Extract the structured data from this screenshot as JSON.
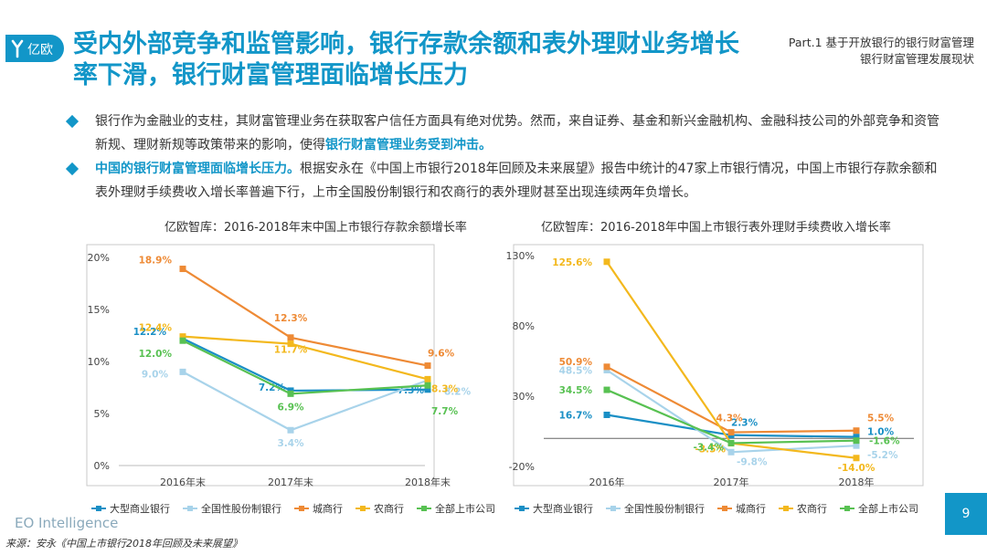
{
  "logo": {
    "text": "亿欧"
  },
  "title": "受内外部竞争和监管影响，银行存款余额和表外理财业务增长率下滑，银行财富管理面临增长压力",
  "part": {
    "line1": "Part.1 基于开放银行的银行财富管理",
    "line2": "银行财富管理发展现状"
  },
  "bullets": [
    {
      "text": "银行作为金融业的支柱，其财富管理业务在获取客户信任方面具有绝对优势。然而，来自证券、基金和新兴金融机构、金融科技公司的外部竞争和资管新规、理财新规等政策带来的影响，使得",
      "highlight": "银行财富管理业务受到冲击。",
      "tail": ""
    },
    {
      "text": "",
      "highlight": "中国的银行财富管理面临增长压力。",
      "tail": "根据安永在《中国上市银行2018年回顾及未来展望》报告中统计的47家上市银行情况，中国上市银行存款余额和表外理财手续费收入增长率普遍下行，上市全国股份制银行和农商行的表外理财甚至出现连续两年负增长。"
    }
  ],
  "colors": {
    "big": "#1a8fc5",
    "joint": "#a8d3ea",
    "city": "#ee8a35",
    "rural": "#f3b81d",
    "all": "#58c152",
    "accent": "#1296c8"
  },
  "chart_data": [
    {
      "type": "line",
      "title": "亿欧智库：2016-2018年末中国上市银行存款余额增长率",
      "categories": [
        "2016年末",
        "2017年末",
        "2018年末"
      ],
      "ylim": [
        0,
        20
      ],
      "yticks": [
        "0%",
        "5%",
        "10%",
        "15%",
        "20%"
      ],
      "series": [
        {
          "name": "大型商业银行",
          "values": [
            12.2,
            7.2,
            7.3
          ],
          "labels": [
            "12.2%",
            "7.2%",
            "7.3%"
          ]
        },
        {
          "name": "全国性股份制银行",
          "values": [
            9.0,
            3.4,
            8.2
          ],
          "labels": [
            "9.0%",
            "3.4%",
            "8.2%"
          ]
        },
        {
          "name": "城商行",
          "values": [
            18.9,
            12.3,
            9.6
          ],
          "labels": [
            "18.9%",
            "12.3%",
            "9.6%"
          ]
        },
        {
          "name": "农商行",
          "values": [
            12.4,
            11.7,
            8.3
          ],
          "labels": [
            "12.4%",
            "11.7%",
            "8.3%"
          ]
        },
        {
          "name": "全部上市公司",
          "values": [
            12.0,
            6.9,
            7.7
          ],
          "labels": [
            "12.0%",
            "6.9%",
            "7.7%"
          ]
        }
      ]
    },
    {
      "type": "line",
      "title": "亿欧智库：2016-2018年中国上市银行表外理财手续费收入增长率",
      "categories": [
        "2016年",
        "2017年",
        "2018年"
      ],
      "ylim": [
        -20,
        130
      ],
      "yticks": [
        "-20%",
        "30%",
        "80%",
        "130%"
      ],
      "series": [
        {
          "name": "大型商业银行",
          "values": [
            16.7,
            2.3,
            1.0
          ],
          "labels": [
            "16.7%",
            "2.3%",
            "1.0%"
          ]
        },
        {
          "name": "全国性股份制银行",
          "values": [
            48.5,
            -9.8,
            -5.2
          ],
          "labels": [
            "48.5%",
            "-9.8%",
            "-5.2%"
          ]
        },
        {
          "name": "城商行",
          "values": [
            50.9,
            4.3,
            5.5
          ],
          "labels": [
            "50.9%",
            "4.3%",
            "5.5%"
          ]
        },
        {
          "name": "农商行",
          "values": [
            125.6,
            -3.5,
            -14.0
          ],
          "labels": [
            "125.6%",
            "-3.5%",
            "-14.0%"
          ]
        },
        {
          "name": "全部上市公司",
          "values": [
            34.5,
            -3.4,
            -1.6
          ],
          "labels": [
            "34.5%",
            "-3.4%",
            "-1.6%"
          ]
        }
      ]
    }
  ],
  "footer": {
    "brand": "EO Intelligence",
    "source": "来源：安永《中国上市银行2018年回顾及未来展望》",
    "page": "9"
  }
}
